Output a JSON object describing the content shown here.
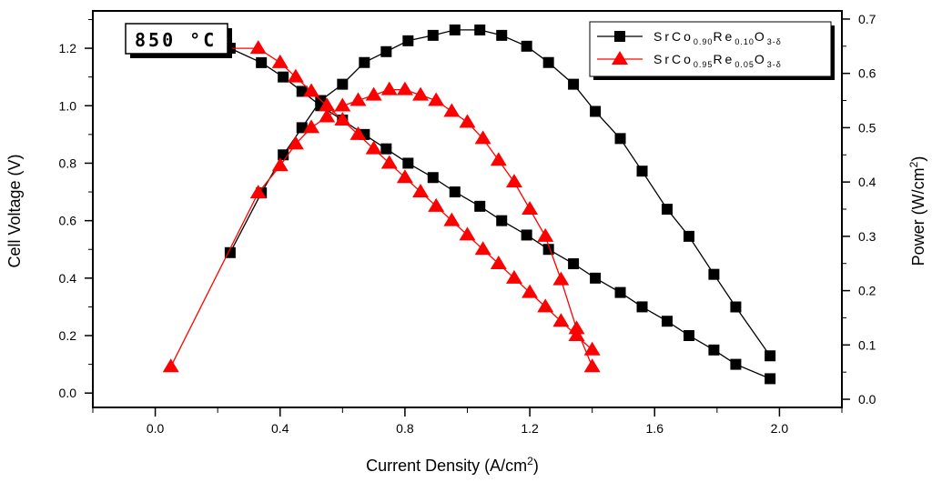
{
  "chart_data": {
    "type": "line",
    "annotation": "850 °C",
    "xlabel": "Current Density (A/cm",
    "xlabel_sup": "2",
    "xlabel_end": ")",
    "ylabel_left": "Cell Voltage (V)",
    "ylabel_right": "Power (W/cm",
    "ylabel_right_sup": "2",
    "ylabel_right_end": ")",
    "xlim": [
      -0.2,
      2.2
    ],
    "ylim_left": [
      -0.05,
      1.33
    ],
    "ylim_right": [
      -0.015,
      0.715
    ],
    "x_ticks": [
      "0.0",
      "0.4",
      "0.8",
      "1.2",
      "1.6",
      "2.0"
    ],
    "y_left_ticks": [
      "0.0",
      "0.2",
      "0.4",
      "0.6",
      "0.8",
      "1.0",
      "1.2"
    ],
    "y_right_ticks": [
      "0.0",
      "0.1",
      "0.2",
      "0.3",
      "0.4",
      "0.5",
      "0.6",
      "0.7"
    ],
    "legend_position": "top-right",
    "series": [
      {
        "legend": {
          "p1": "SrCo",
          "s1": "0.90",
          "p2": "Re",
          "s2": "0.10",
          "p3": "O",
          "s3": "3-δ"
        },
        "color": "#000000",
        "marker": "square",
        "voltage": {
          "x": [
            0.05,
            0.24,
            0.34,
            0.41,
            0.47,
            0.53,
            0.6,
            0.67,
            0.74,
            0.81,
            0.89,
            0.96,
            1.04,
            1.11,
            1.19,
            1.26,
            1.34,
            1.41,
            1.49,
            1.56,
            1.64,
            1.71,
            1.79,
            1.86,
            1.97
          ],
          "y": [
            1.2,
            1.2,
            1.15,
            1.1,
            1.05,
            1.0,
            0.95,
            0.9,
            0.85,
            0.8,
            0.75,
            0.7,
            0.65,
            0.6,
            0.55,
            0.5,
            0.45,
            0.4,
            0.35,
            0.3,
            0.25,
            0.2,
            0.15,
            0.1,
            0.05
          ]
        },
        "power": {
          "x": [
            0.24,
            0.34,
            0.41,
            0.47,
            0.53,
            0.6,
            0.67,
            0.74,
            0.81,
            0.89,
            0.96,
            1.04,
            1.11,
            1.19,
            1.26,
            1.34,
            1.41,
            1.49,
            1.56,
            1.64,
            1.71,
            1.79,
            1.86,
            1.97
          ],
          "y": [
            0.27,
            0.38,
            0.45,
            0.5,
            0.55,
            0.58,
            0.62,
            0.64,
            0.66,
            0.67,
            0.68,
            0.68,
            0.67,
            0.65,
            0.62,
            0.58,
            0.53,
            0.48,
            0.42,
            0.35,
            0.3,
            0.23,
            0.17,
            0.08
          ]
        }
      },
      {
        "legend": {
          "p1": "SrCo",
          "s1": "0.95",
          "p2": "Re",
          "s2": "0.05",
          "p3": "O",
          "s3": "3-δ"
        },
        "color": "#ff0000",
        "marker": "triangle",
        "voltage": {
          "x": [
            0.05,
            0.33,
            0.4,
            0.45,
            0.5,
            0.55,
            0.6,
            0.65,
            0.7,
            0.75,
            0.8,
            0.85,
            0.9,
            0.95,
            1.0,
            1.05,
            1.1,
            1.15,
            1.2,
            1.25,
            1.3,
            1.35,
            1.4
          ],
          "y": [
            1.2,
            1.2,
            1.15,
            1.1,
            1.05,
            1.0,
            0.95,
            0.9,
            0.85,
            0.8,
            0.75,
            0.7,
            0.65,
            0.6,
            0.55,
            0.5,
            0.45,
            0.4,
            0.35,
            0.3,
            0.25,
            0.2,
            0.15
          ]
        },
        "power": {
          "x": [
            0.05,
            0.33,
            0.4,
            0.45,
            0.5,
            0.55,
            0.6,
            0.65,
            0.7,
            0.75,
            0.8,
            0.85,
            0.9,
            0.95,
            1.0,
            1.05,
            1.1,
            1.15,
            1.2,
            1.25,
            1.3,
            1.35,
            1.4
          ],
          "y": [
            0.06,
            0.38,
            0.43,
            0.47,
            0.5,
            0.52,
            0.54,
            0.55,
            0.56,
            0.57,
            0.57,
            0.56,
            0.55,
            0.53,
            0.51,
            0.48,
            0.44,
            0.4,
            0.35,
            0.3,
            0.22,
            0.13,
            0.06
          ]
        }
      }
    ]
  }
}
